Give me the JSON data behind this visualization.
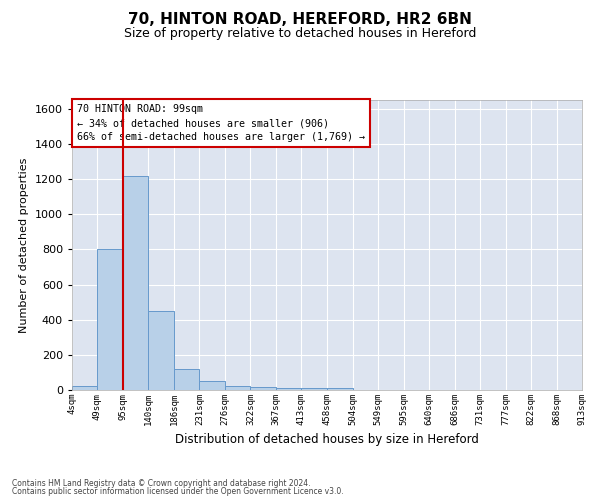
{
  "title1": "70, HINTON ROAD, HEREFORD, HR2 6BN",
  "title2": "Size of property relative to detached houses in Hereford",
  "xlabel": "Distribution of detached houses by size in Hereford",
  "ylabel": "Number of detached properties",
  "bar_values": [
    25,
    800,
    1220,
    450,
    120,
    50,
    25,
    15,
    10,
    10,
    10,
    0,
    0,
    0,
    0,
    0,
    0,
    0,
    0,
    0
  ],
  "bin_edges": [
    4,
    49,
    95,
    140,
    186,
    231,
    276,
    322,
    367,
    413,
    458,
    504,
    549,
    595,
    640,
    686,
    731,
    777,
    822,
    868,
    913
  ],
  "tick_labels": [
    "4sqm",
    "49sqm",
    "95sqm",
    "140sqm",
    "186sqm",
    "231sqm",
    "276sqm",
    "322sqm",
    "367sqm",
    "413sqm",
    "458sqm",
    "504sqm",
    "549sqm",
    "595sqm",
    "640sqm",
    "686sqm",
    "731sqm",
    "777sqm",
    "822sqm",
    "868sqm",
    "913sqm"
  ],
  "bar_color": "#b8d0e8",
  "bar_edge_color": "#6699cc",
  "background_color": "#dde4f0",
  "grid_color": "#ffffff",
  "red_line_x": 95,
  "annotation_text_line1": "70 HINTON ROAD: 99sqm",
  "annotation_text_line2": "← 34% of detached houses are smaller (906)",
  "annotation_text_line3": "66% of semi-detached houses are larger (1,769) →",
  "annotation_box_color": "#cc0000",
  "ylim": [
    0,
    1650
  ],
  "yticks": [
    0,
    200,
    400,
    600,
    800,
    1000,
    1200,
    1400,
    1600
  ],
  "footer1": "Contains HM Land Registry data © Crown copyright and database right 2024.",
  "footer2": "Contains public sector information licensed under the Open Government Licence v3.0."
}
